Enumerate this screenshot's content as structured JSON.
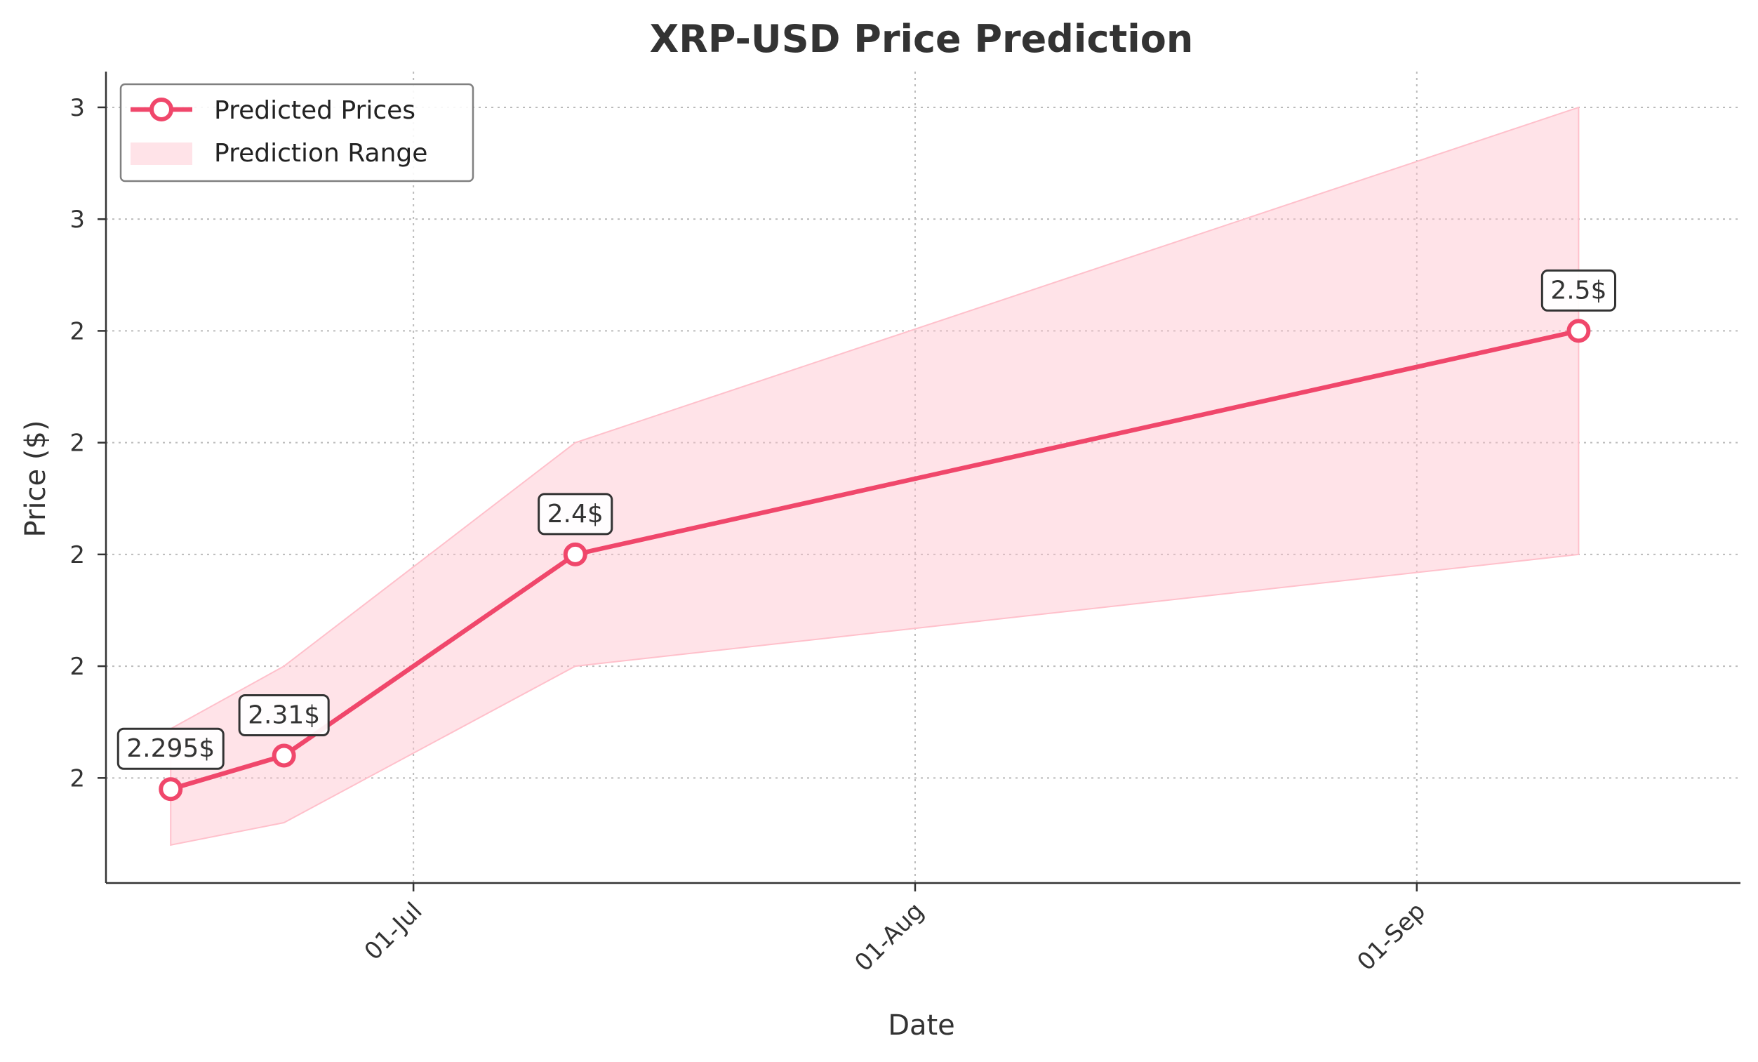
{
  "chart_data": {
    "type": "line",
    "title": "XRP-USD Price Prediction",
    "xlabel": "Date",
    "ylabel": "Price ($)",
    "x_type": "date",
    "x_ticks": [
      {
        "date": "2025-07-01",
        "label": "01-Jul"
      },
      {
        "date": "2025-08-01",
        "label": "01-Aug"
      },
      {
        "date": "2025-09-01",
        "label": "01-Sep"
      }
    ],
    "y_ticks": [
      {
        "value": 2.3,
        "label": "2"
      },
      {
        "value": 2.35,
        "label": "2"
      },
      {
        "value": 2.4,
        "label": "2"
      },
      {
        "value": 2.45,
        "label": "2"
      },
      {
        "value": 2.5,
        "label": "2"
      },
      {
        "value": 2.55,
        "label": "3"
      },
      {
        "value": 2.6,
        "label": "3"
      }
    ],
    "xlim": [
      "2025-06-12",
      "2025-09-21"
    ],
    "ylim": [
      2.253,
      2.616
    ],
    "grid": true,
    "legend_position": "top-left",
    "colors": {
      "line": "#f0476b",
      "band": "#ffc0cb",
      "text": "#333333"
    },
    "series": [
      {
        "name": "Predicted Prices",
        "kind": "line",
        "x": [
          "2025-06-16",
          "2025-06-23",
          "2025-07-11",
          "2025-09-11"
        ],
        "y": [
          2.295,
          2.31,
          2.4,
          2.5
        ],
        "labels": [
          "2.295$",
          "2.31$",
          "2.4$",
          "2.5$"
        ]
      },
      {
        "name": "Prediction Range",
        "kind": "band",
        "x": [
          "2025-06-16",
          "2025-06-23",
          "2025-07-11",
          "2025-09-11"
        ],
        "lower": [
          2.27,
          2.28,
          2.35,
          2.4
        ],
        "upper": [
          2.322,
          2.35,
          2.45,
          2.6
        ]
      }
    ]
  }
}
